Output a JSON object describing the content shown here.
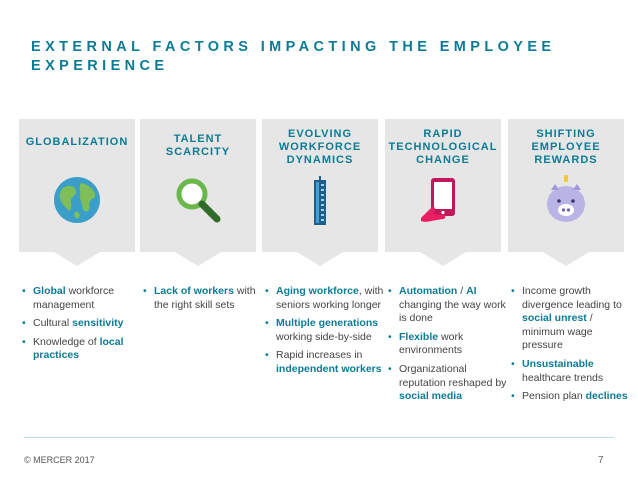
{
  "title": "EXTERNAL FACTORS IMPACTING THE EMPLOYEE EXPERIENCE",
  "columns": [
    {
      "label": "GLOBALIZATION",
      "icon": "globe-icon",
      "bullets": [
        [
          {
            "t": "Global",
            "b": true
          },
          {
            "t": " workforce management",
            "b": false
          }
        ],
        [
          {
            "t": "Cultural ",
            "b": false
          },
          {
            "t": "sensitivity",
            "b": true
          }
        ],
        [
          {
            "t": "Knowledge of ",
            "b": false
          },
          {
            "t": "local practices",
            "b": true
          }
        ]
      ]
    },
    {
      "label": "TALENT SCARCITY",
      "icon": "magnifier-icon",
      "bullets": [
        [
          {
            "t": "Lack of workers",
            "b": true
          },
          {
            "t": " with the right skill sets",
            "b": false
          }
        ]
      ]
    },
    {
      "label": "EVOLVING WORKFORCE DYNAMICS",
      "icon": "skyscraper-icon",
      "bullets": [
        [
          {
            "t": "Aging workforce",
            "b": true
          },
          {
            "t": ", with seniors working longer",
            "b": false
          }
        ],
        [
          {
            "t": "Multiple generations",
            "b": true
          },
          {
            "t": " working side-by-side",
            "b": false
          }
        ],
        [
          {
            "t": "Rapid increases in ",
            "b": false
          },
          {
            "t": "independent workers",
            "b": true
          }
        ]
      ]
    },
    {
      "label": "RAPID TECHNOLOGICAL CHANGE",
      "icon": "tablet-hand-icon",
      "bullets": [
        [
          {
            "t": "Automation",
            "b": true
          },
          {
            "t": " / ",
            "b": false
          },
          {
            "t": "AI",
            "b": true
          },
          {
            "t": " changing the way work is done",
            "b": false
          }
        ],
        [
          {
            "t": "Flexible",
            "b": true
          },
          {
            "t": " work environments",
            "b": false
          }
        ],
        [
          {
            "t": "Organizational reputation reshaped by ",
            "b": false
          },
          {
            "t": "social media",
            "b": true
          }
        ]
      ]
    },
    {
      "label": "SHIFTING EMPLOYEE REWARDS",
      "icon": "piggy-bank-icon",
      "bullets": [
        [
          {
            "t": "Income growth divergence leading to ",
            "b": false
          },
          {
            "t": "social unrest",
            "b": true
          },
          {
            "t": " / minimum wage pressure",
            "b": false
          }
        ],
        [
          {
            "t": "Unsustainable",
            "b": true
          },
          {
            "t": " healthcare trends",
            "b": false
          }
        ],
        [
          {
            "t": "Pension plan ",
            "b": false
          },
          {
            "t": "declines",
            "b": true
          }
        ]
      ]
    }
  ],
  "footer": {
    "copyright": "© MERCER 2017",
    "page_number": "7"
  },
  "colors": {
    "accent": "#0c7b95",
    "header_bg": "#e6e6e6",
    "body_text": "#444444"
  }
}
